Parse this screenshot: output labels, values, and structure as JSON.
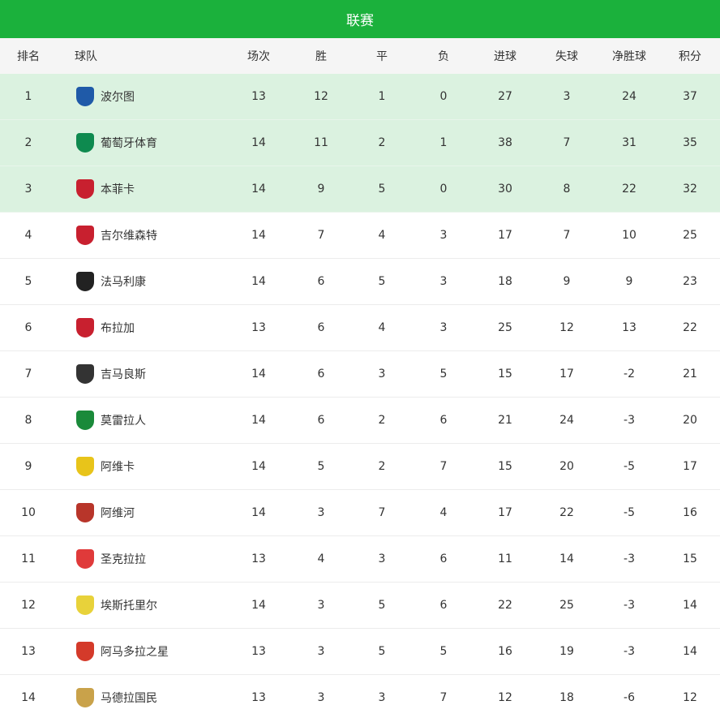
{
  "title": "联赛",
  "columns": [
    "排名",
    "球队",
    "场次",
    "胜",
    "平",
    "负",
    "进球",
    "失球",
    "净胜球",
    "积分"
  ],
  "highlight_color": "#dbf2e0",
  "header_color": "#1bb13c",
  "rows": [
    {
      "rank": "1",
      "team": "波尔图",
      "logo": "porto-crest-icon",
      "logo_color": "#1f5aa8",
      "played": "13",
      "won": "12",
      "drawn": "1",
      "lost": "0",
      "gf": "27",
      "ga": "3",
      "gd": "24",
      "pts": "37"
    },
    {
      "rank": "2",
      "team": "葡萄牙体育",
      "logo": "sporting-crest-icon",
      "logo_color": "#0e8a4f",
      "played": "14",
      "won": "11",
      "drawn": "2",
      "lost": "1",
      "gf": "38",
      "ga": "7",
      "gd": "31",
      "pts": "35"
    },
    {
      "rank": "3",
      "team": "本菲卡",
      "logo": "benfica-crest-icon",
      "logo_color": "#c8202f",
      "played": "14",
      "won": "9",
      "drawn": "5",
      "lost": "0",
      "gf": "30",
      "ga": "8",
      "gd": "22",
      "pts": "32"
    },
    {
      "rank": "4",
      "team": "吉尔维森特",
      "logo": "gil-vicente-crest-icon",
      "logo_color": "#c8202f",
      "played": "14",
      "won": "7",
      "drawn": "4",
      "lost": "3",
      "gf": "17",
      "ga": "7",
      "gd": "10",
      "pts": "25"
    },
    {
      "rank": "5",
      "team": "法马利康",
      "logo": "famalicao-crest-icon",
      "logo_color": "#222222",
      "played": "14",
      "won": "6",
      "drawn": "5",
      "lost": "3",
      "gf": "18",
      "ga": "9",
      "gd": "9",
      "pts": "23"
    },
    {
      "rank": "6",
      "team": "布拉加",
      "logo": "braga-crest-icon",
      "logo_color": "#c8202f",
      "played": "13",
      "won": "6",
      "drawn": "4",
      "lost": "3",
      "gf": "25",
      "ga": "12",
      "gd": "13",
      "pts": "22"
    },
    {
      "rank": "7",
      "team": "吉马良斯",
      "logo": "vitoria-crest-icon",
      "logo_color": "#333333",
      "played": "14",
      "won": "6",
      "drawn": "3",
      "lost": "5",
      "gf": "15",
      "ga": "17",
      "gd": "-2",
      "pts": "21"
    },
    {
      "rank": "8",
      "team": "莫雷拉人",
      "logo": "moreirense-crest-icon",
      "logo_color": "#1a8a3a",
      "played": "14",
      "won": "6",
      "drawn": "2",
      "lost": "6",
      "gf": "21",
      "ga": "24",
      "gd": "-3",
      "pts": "20"
    },
    {
      "rank": "9",
      "team": "阿维卡",
      "logo": "arouca-crest-icon",
      "logo_color": "#e8c41a",
      "played": "14",
      "won": "5",
      "drawn": "2",
      "lost": "7",
      "gf": "15",
      "ga": "20",
      "gd": "-5",
      "pts": "17"
    },
    {
      "rank": "10",
      "team": "阿维河",
      "logo": "rio-ave-crest-icon",
      "logo_color": "#b8352a",
      "played": "14",
      "won": "3",
      "drawn": "7",
      "lost": "4",
      "gf": "17",
      "ga": "22",
      "gd": "-5",
      "pts": "16"
    },
    {
      "rank": "11",
      "team": "圣克拉拉",
      "logo": "santa-clara-crest-icon",
      "logo_color": "#e03a3a",
      "played": "13",
      "won": "4",
      "drawn": "3",
      "lost": "6",
      "gf": "11",
      "ga": "14",
      "gd": "-3",
      "pts": "15"
    },
    {
      "rank": "12",
      "team": "埃斯托里尔",
      "logo": "estoril-crest-icon",
      "logo_color": "#e8d23a",
      "played": "14",
      "won": "3",
      "drawn": "5",
      "lost": "6",
      "gf": "22",
      "ga": "25",
      "gd": "-3",
      "pts": "14"
    },
    {
      "rank": "13",
      "team": "阿马多拉之星",
      "logo": "estrela-crest-icon",
      "logo_color": "#d43a2a",
      "played": "13",
      "won": "3",
      "drawn": "5",
      "lost": "5",
      "gf": "16",
      "ga": "19",
      "gd": "-3",
      "pts": "14"
    },
    {
      "rank": "14",
      "team": "马德拉国民",
      "logo": "nacional-crest-icon",
      "logo_color": "#c9a24a",
      "played": "13",
      "won": "3",
      "drawn": "3",
      "lost": "7",
      "gf": "12",
      "ga": "18",
      "gd": "-6",
      "pts": "12"
    }
  ]
}
